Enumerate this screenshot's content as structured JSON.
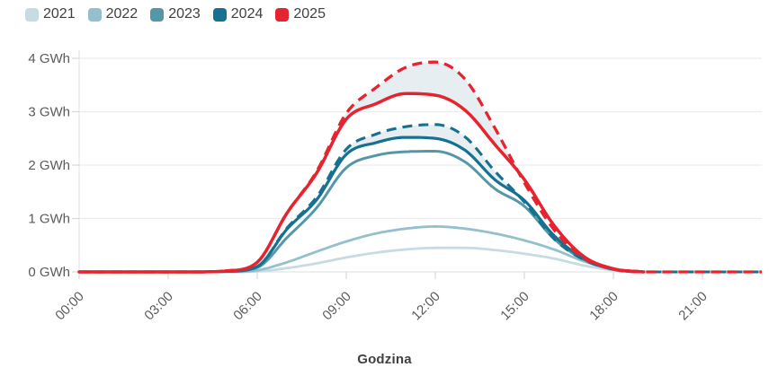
{
  "legend": {
    "items": [
      {
        "label": "2021",
        "color": "#c6dbe2"
      },
      {
        "label": "2022",
        "color": "#93c0cc"
      },
      {
        "label": "2023",
        "color": "#5596a9"
      },
      {
        "label": "2024",
        "color": "#17708f"
      },
      {
        "label": "2025",
        "color": "#e6242f"
      }
    ]
  },
  "chart_data": {
    "type": "line",
    "title": "",
    "xlabel": "Godzina",
    "ylabel": "GWh",
    "ylim": [
      0,
      4
    ],
    "x_unit": "hour-of-day",
    "grid": "horizontal",
    "legend_position": "top-left",
    "y_ticks": [
      {
        "label": "0 GWh",
        "value": 0
      },
      {
        "label": "1 GWh",
        "value": 1
      },
      {
        "label": "2 GWh",
        "value": 2
      },
      {
        "label": "3 GWh",
        "value": 3
      },
      {
        "label": "4 GWh",
        "value": 4
      }
    ],
    "x_ticks": [
      {
        "label": "00:00",
        "hour": 0
      },
      {
        "label": "03:00",
        "hour": 3
      },
      {
        "label": "06:00",
        "hour": 6
      },
      {
        "label": "09:00",
        "hour": 9
      },
      {
        "label": "12:00",
        "hour": 12
      },
      {
        "label": "15:00",
        "hour": 15
      },
      {
        "label": "18:00",
        "hour": 18
      },
      {
        "label": "21:00",
        "hour": 21
      }
    ],
    "series": [
      {
        "key": "2021",
        "name": "2021",
        "color": "#c6dbe2",
        "style": "solid",
        "values": [
          0,
          0,
          0,
          0,
          0,
          0,
          0.01,
          0.07,
          0.16,
          0.27,
          0.36,
          0.42,
          0.45,
          0.45,
          0.41,
          0.34,
          0.25,
          0.12,
          0.03,
          0
        ]
      },
      {
        "key": "2022",
        "name": "2022",
        "color": "#93c0cc",
        "style": "solid",
        "values": [
          0,
          0,
          0,
          0,
          0,
          0,
          0.03,
          0.18,
          0.38,
          0.57,
          0.72,
          0.81,
          0.85,
          0.81,
          0.72,
          0.59,
          0.42,
          0.2,
          0.04,
          0
        ]
      },
      {
        "key": "2023",
        "name": "2023",
        "color": "#5596a9",
        "style": "solid",
        "values": [
          0,
          0,
          0,
          0,
          0,
          0.01,
          0.08,
          0.64,
          1.2,
          1.95,
          2.18,
          2.25,
          2.26,
          2.06,
          1.56,
          1.23,
          0.62,
          0.23,
          0.05,
          0
        ]
      },
      {
        "key": "2024",
        "name": "2024",
        "color": "#17708f",
        "style": "solid",
        "values": [
          0,
          0,
          0,
          0,
          0,
          0.01,
          0.1,
          0.8,
          1.35,
          2.2,
          2.42,
          2.52,
          2.5,
          2.28,
          1.73,
          1.34,
          0.68,
          0.25,
          0.05,
          0
        ]
      },
      {
        "key": "2024-dashed",
        "name": "2024",
        "color": "#17708f",
        "style": "dashed",
        "values": [
          0,
          0,
          0,
          0,
          0,
          0.01,
          0.1,
          0.82,
          1.4,
          2.3,
          2.58,
          2.72,
          2.76,
          2.53,
          1.89,
          1.31,
          0.62,
          0.23,
          0.05,
          0,
          0,
          0,
          0,
          0
        ]
      },
      {
        "key": "2025",
        "name": "2025",
        "color": "#e6242f",
        "style": "solid",
        "values": [
          0,
          0,
          0,
          0,
          0,
          0.02,
          0.18,
          1.1,
          1.85,
          2.86,
          3.15,
          3.34,
          3.31,
          3.03,
          2.39,
          1.73,
          0.87,
          0.29,
          0.06,
          0
        ]
      },
      {
        "key": "2025-dashed",
        "name": "2025",
        "color": "#e6242f",
        "style": "dashed",
        "values": [
          0,
          0,
          0,
          0,
          0,
          0.02,
          0.18,
          1.1,
          1.88,
          2.97,
          3.45,
          3.83,
          3.93,
          3.61,
          2.7,
          1.67,
          0.79,
          0.26,
          0.05,
          0,
          0,
          0,
          0,
          0
        ]
      }
    ],
    "bands": [
      {
        "upper": "2025-dashed",
        "lower": "2025",
        "fill": "#e7eef2"
      },
      {
        "upper": "2024-dashed",
        "lower": "2024",
        "fill": "#e7eef2"
      }
    ]
  }
}
